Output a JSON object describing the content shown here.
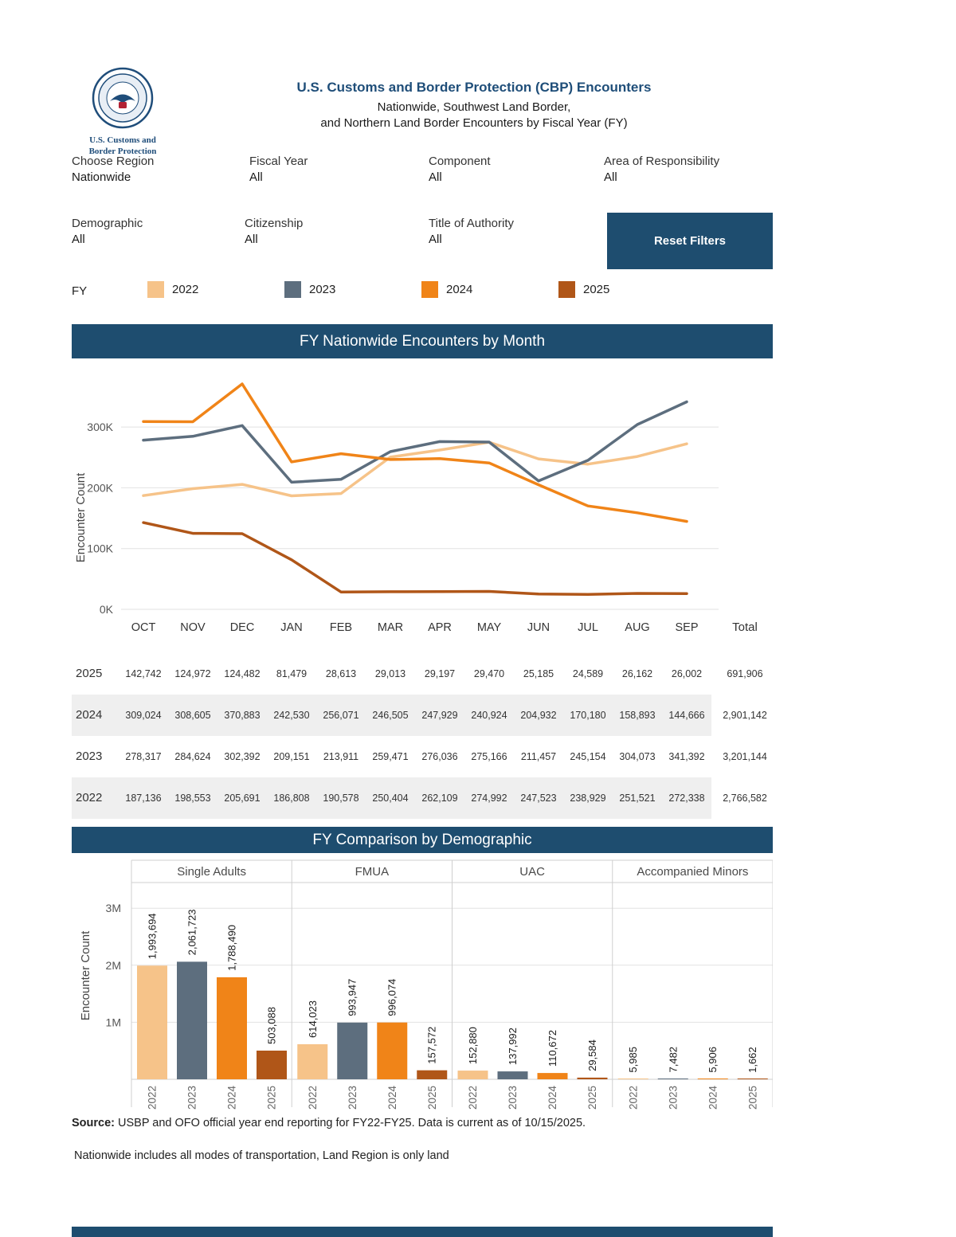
{
  "header": {
    "logo_caption_line1": "U.S. Customs and",
    "logo_caption_line2": "Border Protection",
    "title": "U.S. Customs and Border Protection (CBP) Encounters",
    "subtitle1": "Nationwide, Southwest Land Border,",
    "subtitle2": "and Northern Land Border Encounters by Fiscal Year (FY)"
  },
  "filters": [
    {
      "label": "Choose Region",
      "value": "Nationwide"
    },
    {
      "label": "Fiscal Year",
      "value": "All"
    },
    {
      "label": "Component",
      "value": "All"
    },
    {
      "label": "Area of Responsibility",
      "value": "All"
    },
    {
      "label": "Demographic",
      "value": "All"
    },
    {
      "label": "Citizenship",
      "value": "All"
    },
    {
      "label": "Title of Authority",
      "value": "All"
    }
  ],
  "reset_button_label": "Reset Filters",
  "legend": {
    "label": "FY",
    "items": [
      {
        "year": "2022",
        "color": "#F6C389"
      },
      {
        "year": "2023",
        "color": "#5D6E7E"
      },
      {
        "year": "2024",
        "color": "#F08418"
      },
      {
        "year": "2025",
        "color": "#B05618"
      }
    ]
  },
  "chart_data": [
    {
      "type": "line",
      "title": "FY Nationwide Encounters by Month",
      "xlabel": "",
      "ylabel": "Encounter Count",
      "x": [
        "OCT",
        "NOV",
        "DEC",
        "JAN",
        "FEB",
        "MAR",
        "APR",
        "MAY",
        "JUN",
        "JUL",
        "AUG",
        "SEP"
      ],
      "yticks": [
        "0K",
        "100K",
        "200K",
        "300K"
      ],
      "ytick_values": [
        0,
        100000,
        200000,
        300000
      ],
      "ylim": [
        0,
        400000
      ],
      "grid": "horizontal",
      "series": [
        {
          "name": "2022",
          "color": "#F6C389",
          "total": 2766582,
          "values": [
            187136,
            198553,
            205691,
            186808,
            190578,
            250404,
            262109,
            274992,
            247523,
            238929,
            251521,
            272338
          ]
        },
        {
          "name": "2023",
          "color": "#5D6E7E",
          "total": 3201144,
          "values": [
            278317,
            284624,
            302392,
            209151,
            213911,
            259471,
            276036,
            275166,
            211457,
            245154,
            304073,
            341392
          ]
        },
        {
          "name": "2024",
          "color": "#F08418",
          "total": 2901142,
          "values": [
            309024,
            308605,
            370883,
            242530,
            256071,
            246505,
            247929,
            240924,
            204932,
            170180,
            158893,
            144666
          ]
        },
        {
          "name": "2025",
          "color": "#B05618",
          "total": 691906,
          "values": [
            142742,
            124972,
            124482,
            81479,
            28613,
            29013,
            29197,
            29470,
            25185,
            24589,
            26162,
            26002
          ]
        }
      ]
    },
    {
      "type": "bar",
      "title": "FY Comparison by Demographic",
      "xlabel": "",
      "ylabel": "Encounter Count",
      "yticks": [
        "1M",
        "2M",
        "3M"
      ],
      "ytick_values": [
        1000000,
        2000000,
        3000000
      ],
      "ylim": [
        0,
        3500000
      ],
      "grid": "horizontal",
      "years": [
        "2022",
        "2023",
        "2024",
        "2025"
      ],
      "groups": [
        "Single Adults",
        "FMUA",
        "UAC",
        "Accompanied Minors"
      ],
      "series": [
        {
          "group": "Single Adults",
          "values": [
            1993694,
            2061723,
            1788490,
            503088
          ]
        },
        {
          "group": "FMUA",
          "values": [
            614023,
            993947,
            996074,
            157572
          ]
        },
        {
          "group": "UAC",
          "values": [
            152880,
            137992,
            110672,
            29584
          ]
        },
        {
          "group": "Accompanied Minors",
          "values": [
            5985,
            7482,
            5906,
            1662
          ]
        }
      ]
    }
  ],
  "table": {
    "total_label": "Total",
    "row_order": [
      "2025",
      "2024",
      "2023",
      "2022"
    ],
    "shaded_years": [
      "2024",
      "2022"
    ]
  },
  "footer": {
    "source_label": "Source:",
    "source_text": " USBP and OFO official year end reporting for FY22-FY25. Data is current as of 10/15/2025.",
    "note": "Nationwide includes all modes of transportation, Land Region is only land"
  },
  "colors": {
    "header_bar": "#1e4d6f",
    "table_shade": "#efefef",
    "gridline": "#e2e2e2",
    "fy2022": "#F6C389",
    "fy2023": "#5D6E7E",
    "fy2024": "#F08418",
    "fy2025": "#B05618"
  }
}
